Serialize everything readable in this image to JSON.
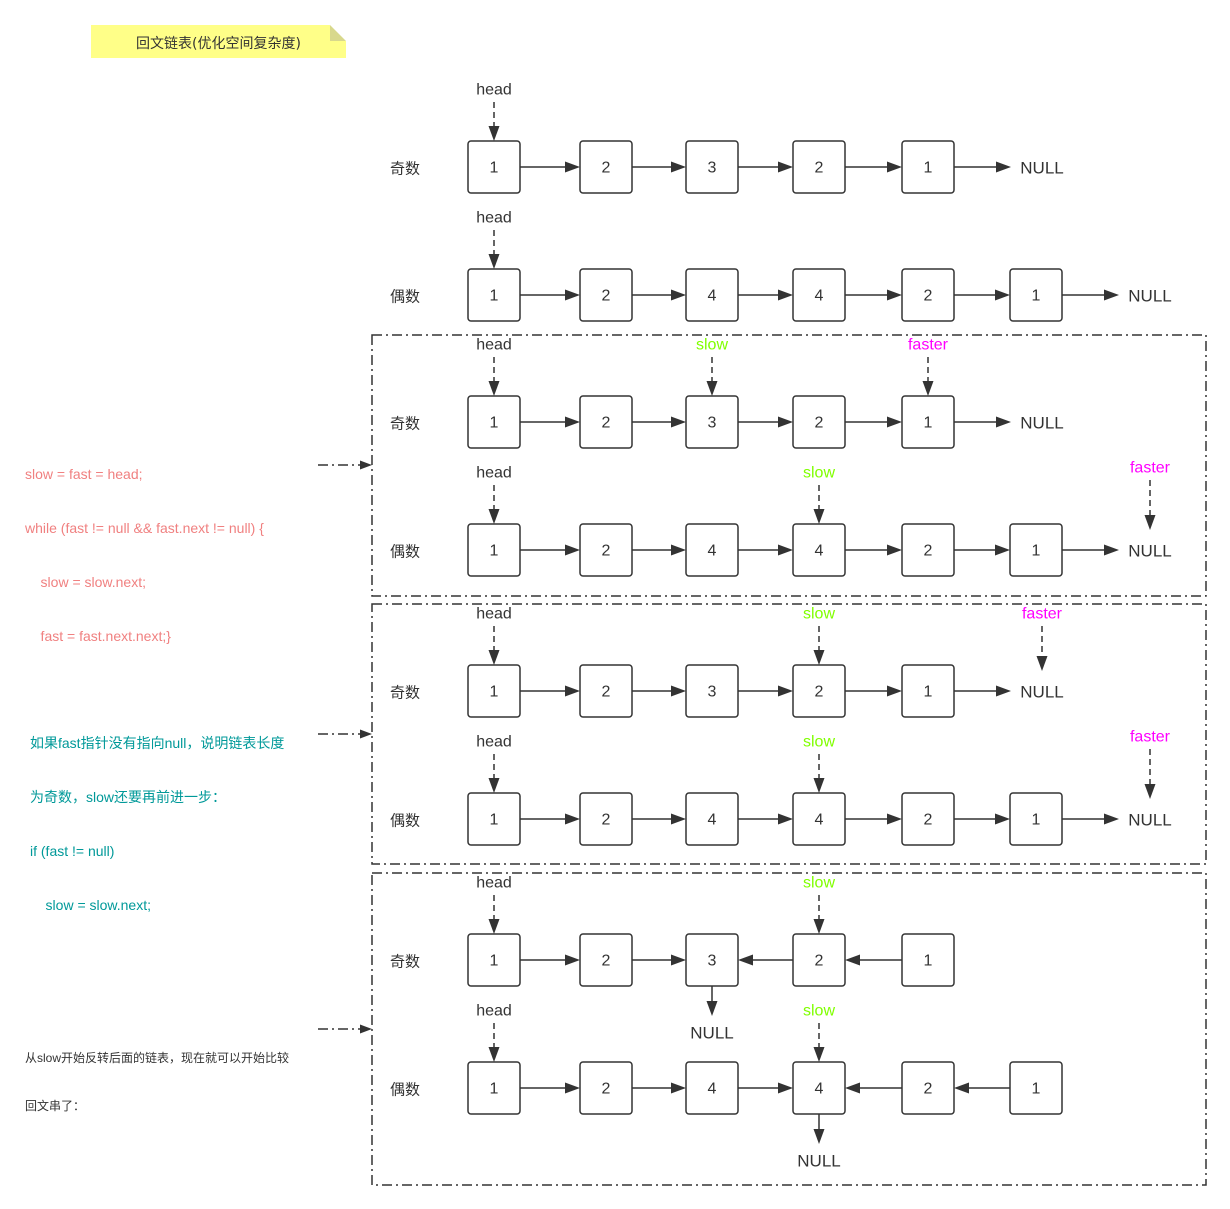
{
  "title": "回文链表(优化空间复杂度)",
  "labels": {
    "odd": "奇数",
    "even": "偶数",
    "head": "head",
    "slow": "slow",
    "faster": "faster",
    "null": "NULL"
  },
  "colors": {
    "line": "#333333",
    "slow": "#80ff00",
    "faster": "#ff00ff",
    "code_red": "#f08080",
    "code_teal": "#009999",
    "note_bg": "#ffff88"
  },
  "odd_list": [
    "1",
    "2",
    "3",
    "2",
    "1"
  ],
  "even_list": [
    "1",
    "2",
    "4",
    "4",
    "2",
    "1"
  ],
  "annotations": {
    "loop_code": [
      "slow = fast = head;",
      "while (fast != null && fast.next != null) {",
      "    slow = slow.next;",
      "    fast = fast.next.next;}"
    ],
    "odd_step": [
      "如果fast指针没有指向null，说明链表长度",
      "为奇数，slow还要再前进一步：",
      "if (fast != null)",
      "    slow = slow.next;"
    ],
    "reverse_note": [
      "从slow开始反转后面的链表，现在就可以开始比较",
      "回文串了："
    ]
  },
  "sections": [
    {
      "framed": false,
      "rows": [
        {
          "parity": "odd",
          "pointers": [
            {
              "label": "head",
              "type": "head",
              "target": 0
            }
          ],
          "reversed": false
        },
        {
          "parity": "even",
          "pointers": [
            {
              "label": "head",
              "type": "head",
              "target": 0
            }
          ],
          "reversed": false
        }
      ]
    },
    {
      "framed": true,
      "rows": [
        {
          "parity": "odd",
          "pointers": [
            {
              "label": "head",
              "type": "head",
              "target": 0
            },
            {
              "label": "slow",
              "type": "slow",
              "target": 2
            },
            {
              "label": "faster",
              "type": "faster",
              "target": 4
            }
          ],
          "reversed": false
        },
        {
          "parity": "even",
          "pointers": [
            {
              "label": "head",
              "type": "head",
              "target": 0
            },
            {
              "label": "slow",
              "type": "slow",
              "target": 3
            },
            {
              "label": "faster",
              "type": "faster",
              "target": "null"
            }
          ],
          "reversed": false
        }
      ]
    },
    {
      "framed": true,
      "rows": [
        {
          "parity": "odd",
          "pointers": [
            {
              "label": "head",
              "type": "head",
              "target": 0
            },
            {
              "label": "slow",
              "type": "slow",
              "target": 3
            },
            {
              "label": "faster",
              "type": "faster",
              "target": "null"
            }
          ],
          "reversed": false
        },
        {
          "parity": "even",
          "pointers": [
            {
              "label": "head",
              "type": "head",
              "target": 0
            },
            {
              "label": "slow",
              "type": "slow",
              "target": 3
            },
            {
              "label": "faster",
              "type": "faster",
              "target": "null"
            }
          ],
          "reversed": false
        }
      ]
    },
    {
      "framed": true,
      "rows": [
        {
          "parity": "odd",
          "pointers": [
            {
              "label": "head",
              "type": "head",
              "target": 0
            },
            {
              "label": "slow",
              "type": "slow",
              "target": 3
            }
          ],
          "reversed": true
        },
        {
          "parity": "even",
          "pointers": [
            {
              "label": "head",
              "type": "head",
              "target": 0
            },
            {
              "label": "slow",
              "type": "slow",
              "target": 3
            }
          ],
          "reversed": true
        }
      ]
    }
  ]
}
